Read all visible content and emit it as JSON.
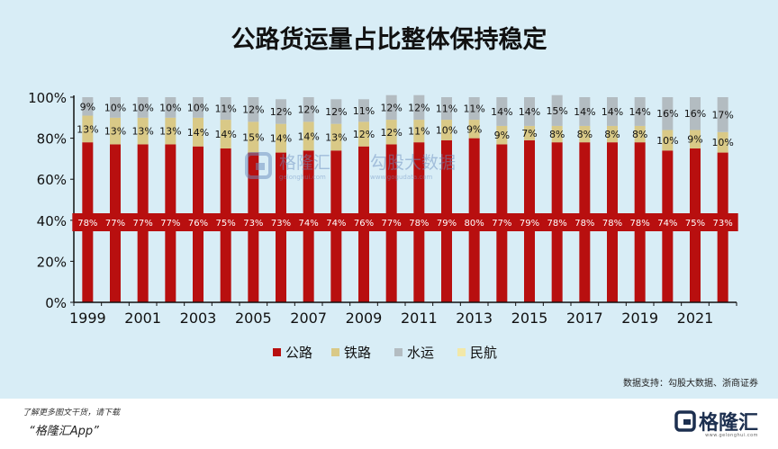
{
  "title": "公路货运量占比整体保持稳定",
  "source": "数据支持：勾股大数据、浙商证券",
  "footer": {
    "note": "了解更多图文干货，请下载",
    "app": "“格隆汇App”"
  },
  "brand": {
    "name": "格隆汇",
    "sub": "www.gelonghui.com",
    "color": "#1c2f4f"
  },
  "watermark": {
    "brand1": "格隆汇",
    "sub1": "gelonghui.com",
    "brand2": "勾股大数据",
    "sub2": "www.gogudata.com"
  },
  "colors": {
    "background": "#d8edf6",
    "公路": "#b80f0f",
    "铁路": "#d9c987",
    "水运": "#b3bcc1",
    "民航": "#f2e8a8"
  },
  "chart_data": {
    "type": "bar",
    "stacked": true,
    "title": "公路货运量占比整体保持稳定",
    "categories": [
      "1999",
      "2000",
      "2001",
      "2002",
      "2003",
      "2004",
      "2005",
      "2006",
      "2007",
      "2008",
      "2009",
      "2010",
      "2011",
      "2012",
      "2013",
      "2014",
      "2015",
      "2016",
      "2017",
      "2018",
      "2019",
      "2020",
      "2021",
      "2022"
    ],
    "x_tick_labels": [
      "1999",
      "2001",
      "2003",
      "2005",
      "2007",
      "2009",
      "2011",
      "2013",
      "2015",
      "2017",
      "2019",
      "2021"
    ],
    "y_tick_labels": [
      "0%",
      "20%",
      "40%",
      "60%",
      "80%",
      "100%"
    ],
    "ylim": [
      0,
      100
    ],
    "grid": false,
    "legend_position": "bottom",
    "series": [
      {
        "name": "公路",
        "values": [
          78,
          77,
          77,
          77,
          76,
          75,
          73,
          73,
          74,
          74,
          76,
          77,
          78,
          79,
          80,
          77,
          79,
          78,
          78,
          78,
          78,
          74,
          75,
          73
        ]
      },
      {
        "name": "铁路",
        "values": [
          13,
          13,
          13,
          13,
          14,
          14,
          15,
          14,
          14,
          13,
          12,
          12,
          11,
          10,
          9,
          9,
          7,
          8,
          8,
          8,
          8,
          10,
          9,
          10
        ]
      },
      {
        "name": "水运",
        "values": [
          9,
          10,
          10,
          10,
          10,
          11,
          12,
          12,
          12,
          12,
          11,
          12,
          12,
          11,
          11,
          14,
          14,
          15,
          14,
          14,
          14,
          16,
          16,
          17
        ]
      },
      {
        "name": "民航",
        "values": [
          0,
          0,
          0,
          0,
          0,
          0,
          0,
          0,
          0,
          0,
          0,
          0,
          0,
          0,
          0,
          0,
          0,
          0,
          0,
          0,
          0,
          0,
          0,
          0
        ]
      }
    ],
    "data_labels": {
      "公路": [
        "78%",
        "77%",
        "77%",
        "77%",
        "76%",
        "75%",
        "73%",
        "73%",
        "74%",
        "74%",
        "76%",
        "77%",
        "78%",
        "79%",
        "80%",
        "77%",
        "79%",
        "78%",
        "78%",
        "78%",
        "78%",
        "74%",
        "75%",
        "73%"
      ],
      "铁路": [
        "13%",
        "13%",
        "13%",
        "13%",
        "14%",
        "14%",
        "15%",
        "14%",
        "14%",
        "13%",
        "12%",
        "12%",
        "11%",
        "10%",
        "9%",
        "9%",
        "7%",
        "8%",
        "8%",
        "8%",
        "8%",
        "10%",
        "9%",
        "10%"
      ],
      "水运": [
        "9%",
        "10%",
        "10%",
        "10%",
        "10%",
        "11%",
        "12%",
        "12%",
        "12%",
        "12%",
        "11%",
        "12%",
        "12%",
        "11%",
        "11%",
        "14%",
        "14%",
        "15%",
        "14%",
        "14%",
        "14%",
        "16%",
        "16%",
        "17%"
      ]
    }
  }
}
